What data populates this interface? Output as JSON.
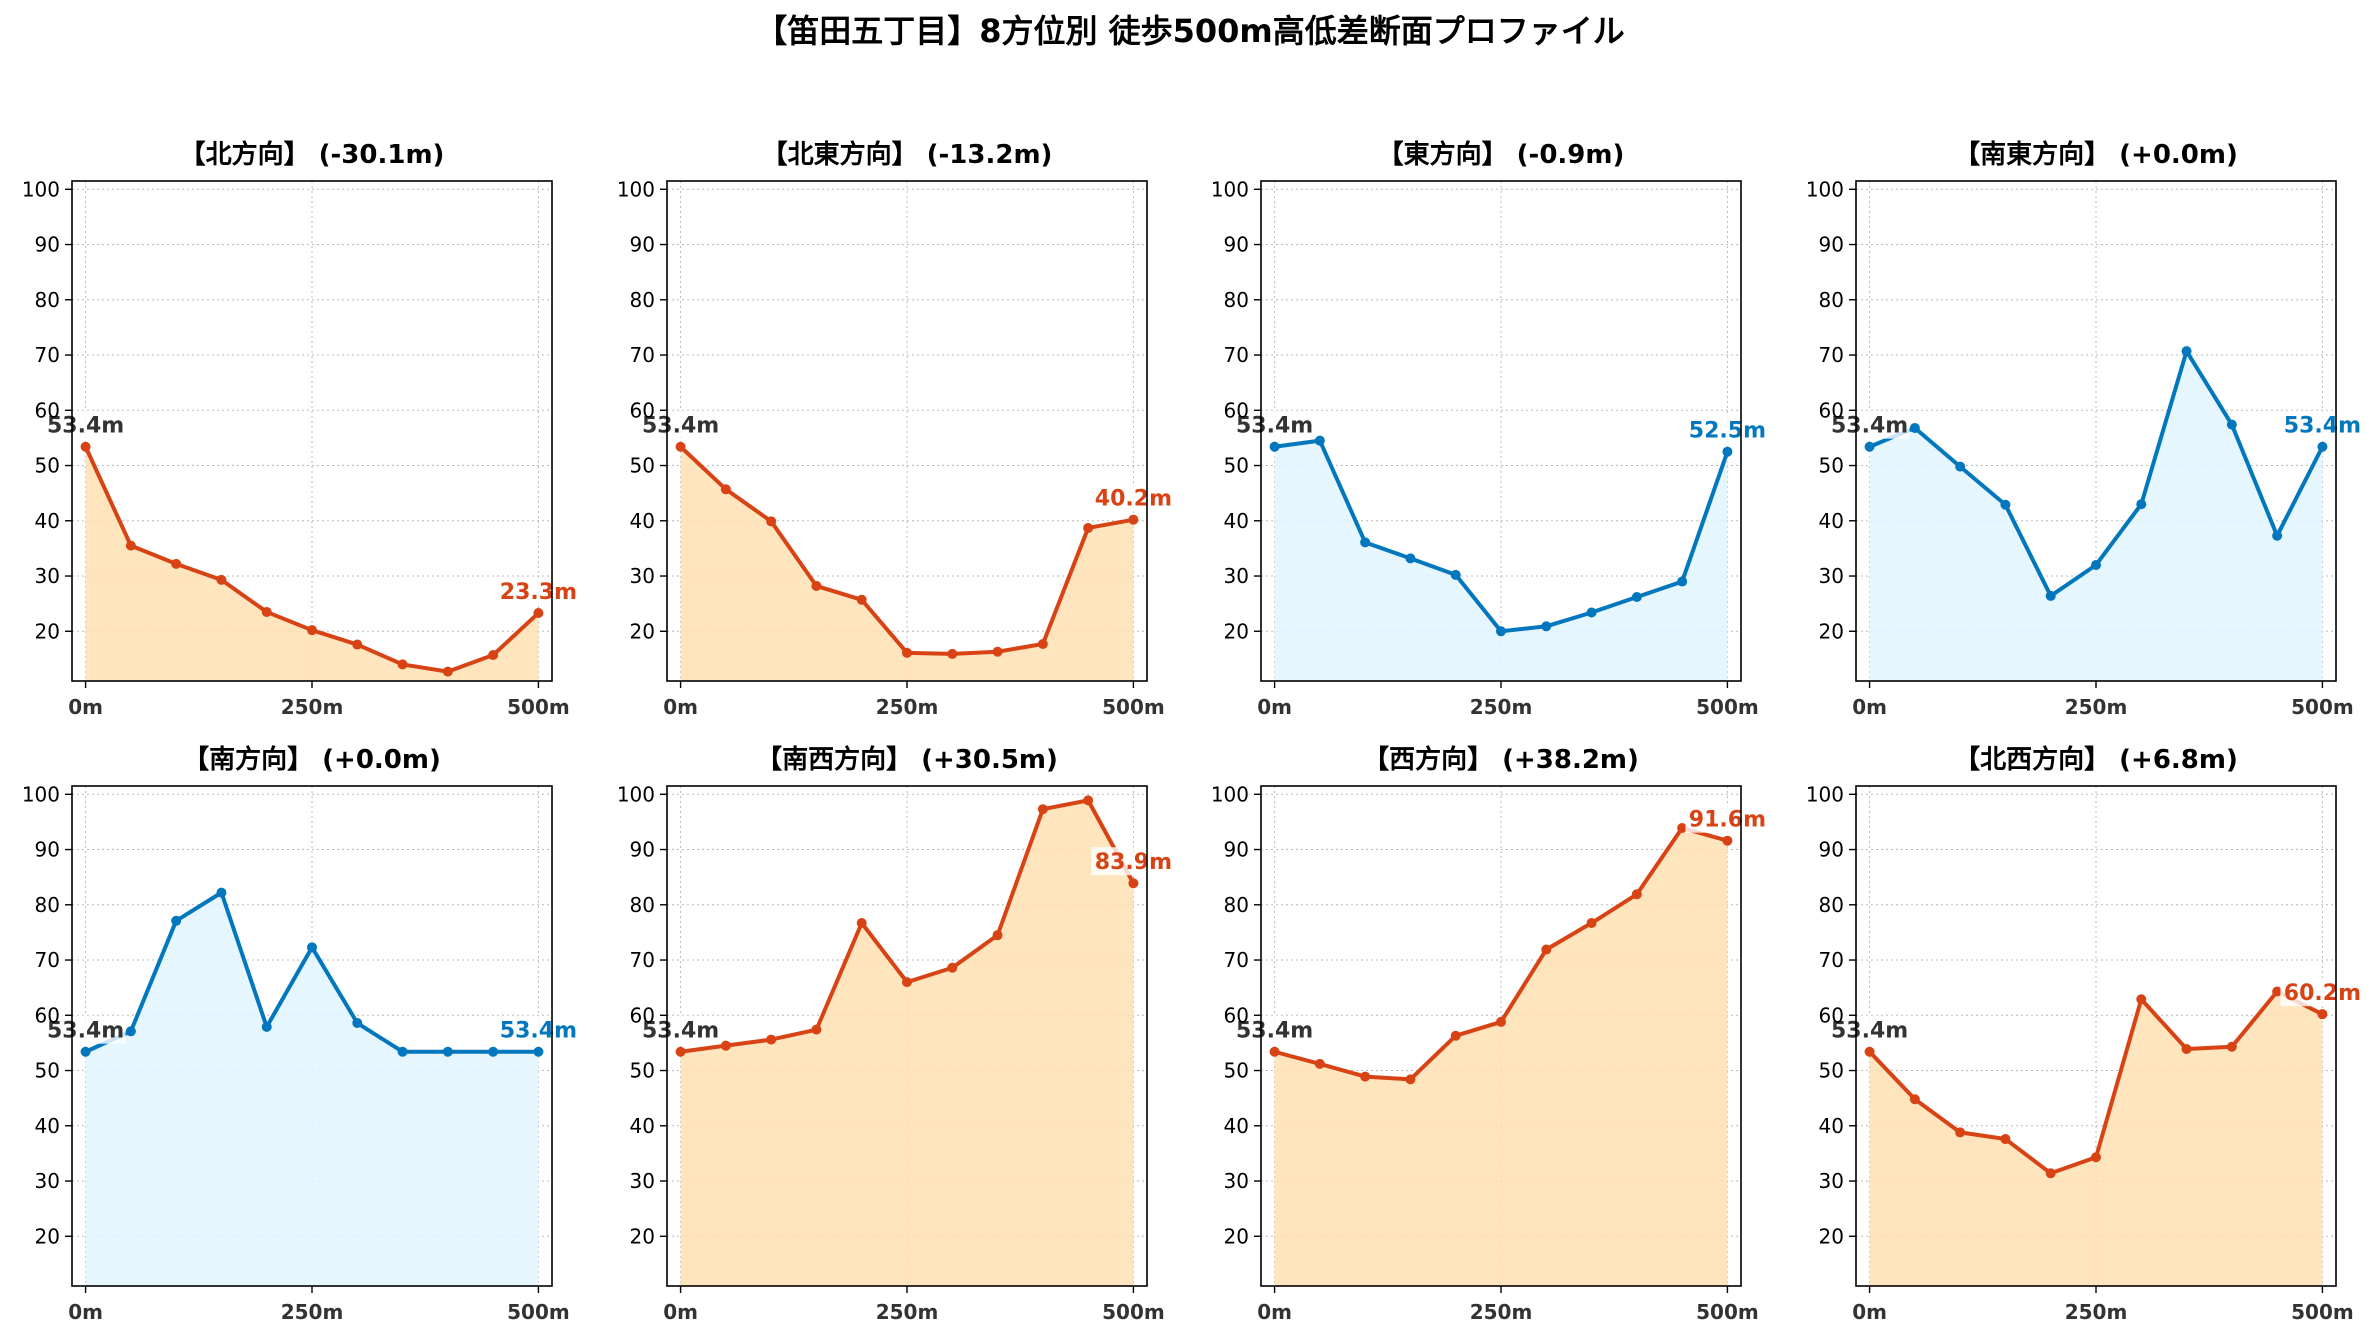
{
  "title": "【笛田五丁目】8方位別 徒歩500m高低差断面プロファイル",
  "colors": {
    "down": "#d84315",
    "down_fill": "#ffe0b2",
    "up": "#0277bd",
    "up_fill": "#e1f5fe",
    "start_label": "#333333",
    "grid": "#bbbbbb",
    "axis": "#000000"
  },
  "chart_data": [
    {
      "type": "area",
      "title": "【北方向】 (-30.1m)",
      "xlabel": "",
      "ylabel": "",
      "x": [
        0,
        50,
        100,
        150,
        200,
        250,
        300,
        350,
        400,
        450,
        500
      ],
      "series": [
        {
          "values": [
            53.4,
            35.5,
            32.2,
            29.3,
            23.5,
            20.2,
            17.6,
            14.0,
            12.7,
            15.7,
            23.3
          ]
        }
      ],
      "color_key": "down",
      "start_label": "53.4m",
      "end_label": "23.3m",
      "xticks": [
        "0m",
        "250m",
        "500m"
      ],
      "yticks": [
        "20",
        "30",
        "40",
        "50",
        "60",
        "70",
        "80",
        "90",
        "100"
      ],
      "xlim": [
        -15,
        515
      ],
      "ylim": [
        11,
        101.5
      ],
      "grid": true
    },
    {
      "type": "area",
      "title": "【北東方向】 (-13.2m)",
      "xlabel": "",
      "ylabel": "",
      "x": [
        0,
        50,
        100,
        150,
        200,
        250,
        300,
        350,
        400,
        450,
        500
      ],
      "series": [
        {
          "values": [
            53.4,
            45.7,
            39.9,
            28.2,
            25.7,
            16.1,
            15.9,
            16.3,
            17.7,
            38.7,
            40.2
          ]
        }
      ],
      "color_key": "down",
      "start_label": "53.4m",
      "end_label": "40.2m",
      "xticks": [
        "0m",
        "250m",
        "500m"
      ],
      "yticks": [
        "20",
        "30",
        "40",
        "50",
        "60",
        "70",
        "80",
        "90",
        "100"
      ],
      "xlim": [
        -15,
        515
      ],
      "ylim": [
        11,
        101.5
      ],
      "grid": true
    },
    {
      "type": "area",
      "title": "【東方向】 (-0.9m)",
      "xlabel": "",
      "ylabel": "",
      "x": [
        0,
        50,
        100,
        150,
        200,
        250,
        300,
        350,
        400,
        450,
        500
      ],
      "series": [
        {
          "values": [
            53.4,
            54.5,
            36.1,
            33.2,
            30.2,
            20.0,
            20.9,
            23.4,
            26.2,
            29.0,
            52.5
          ]
        }
      ],
      "color_key": "up",
      "start_label": "53.4m",
      "end_label": "52.5m",
      "xticks": [
        "0m",
        "250m",
        "500m"
      ],
      "yticks": [
        "20",
        "30",
        "40",
        "50",
        "60",
        "70",
        "80",
        "90",
        "100"
      ],
      "xlim": [
        -15,
        515
      ],
      "ylim": [
        11,
        101.5
      ],
      "grid": true
    },
    {
      "type": "area",
      "title": "【南東方向】 (+0.0m)",
      "xlabel": "",
      "ylabel": "",
      "x": [
        0,
        50,
        100,
        150,
        200,
        250,
        300,
        350,
        400,
        450,
        500
      ],
      "series": [
        {
          "values": [
            53.4,
            56.8,
            49.8,
            42.9,
            26.4,
            32.0,
            43.0,
            70.7,
            57.4,
            37.3,
            53.4
          ]
        }
      ],
      "color_key": "up",
      "start_label": "53.4m",
      "end_label": "53.4m",
      "xticks": [
        "0m",
        "250m",
        "500m"
      ],
      "yticks": [
        "20",
        "30",
        "40",
        "50",
        "60",
        "70",
        "80",
        "90",
        "100"
      ],
      "xlim": [
        -15,
        515
      ],
      "ylim": [
        11,
        101.5
      ],
      "grid": true
    },
    {
      "type": "area",
      "title": "【南方向】 (+0.0m)",
      "xlabel": "",
      "ylabel": "",
      "x": [
        0,
        50,
        100,
        150,
        200,
        250,
        300,
        350,
        400,
        450,
        500
      ],
      "series": [
        {
          "values": [
            53.4,
            57.1,
            77.1,
            82.2,
            57.9,
            72.3,
            58.6,
            53.4,
            53.4,
            53.4,
            53.4
          ]
        }
      ],
      "color_key": "up",
      "start_label": "53.4m",
      "end_label": "53.4m",
      "xticks": [
        "0m",
        "250m",
        "500m"
      ],
      "yticks": [
        "20",
        "30",
        "40",
        "50",
        "60",
        "70",
        "80",
        "90",
        "100"
      ],
      "xlim": [
        -15,
        515
      ],
      "ylim": [
        11,
        101.5
      ],
      "grid": true
    },
    {
      "type": "area",
      "title": "【南西方向】 (+30.5m)",
      "xlabel": "",
      "ylabel": "",
      "x": [
        0,
        50,
        100,
        150,
        200,
        250,
        300,
        350,
        400,
        450,
        500
      ],
      "series": [
        {
          "values": [
            53.4,
            54.5,
            55.6,
            57.4,
            76.7,
            66.0,
            68.6,
            74.5,
            97.3,
            98.9,
            83.9
          ]
        }
      ],
      "color_key": "down",
      "start_label": "53.4m",
      "end_label": "83.9m",
      "xticks": [
        "0m",
        "250m",
        "500m"
      ],
      "yticks": [
        "20",
        "30",
        "40",
        "50",
        "60",
        "70",
        "80",
        "90",
        "100"
      ],
      "xlim": [
        -15,
        515
      ],
      "ylim": [
        11,
        101.5
      ],
      "grid": true
    },
    {
      "type": "area",
      "title": "【西方向】 (+38.2m)",
      "xlabel": "",
      "ylabel": "",
      "x": [
        0,
        50,
        100,
        150,
        200,
        250,
        300,
        350,
        400,
        450,
        500
      ],
      "series": [
        {
          "values": [
            53.4,
            51.2,
            48.9,
            48.4,
            56.3,
            58.8,
            71.9,
            76.7,
            81.9,
            93.9,
            91.6
          ]
        }
      ],
      "color_key": "down",
      "start_label": "53.4m",
      "end_label": "91.6m",
      "xticks": [
        "0m",
        "250m",
        "500m"
      ],
      "yticks": [
        "20",
        "30",
        "40",
        "50",
        "60",
        "70",
        "80",
        "90",
        "100"
      ],
      "xlim": [
        -15,
        515
      ],
      "ylim": [
        11,
        101.5
      ],
      "grid": true
    },
    {
      "type": "area",
      "title": "【北西方向】 (+6.8m)",
      "xlabel": "",
      "ylabel": "",
      "x": [
        0,
        50,
        100,
        150,
        200,
        250,
        300,
        350,
        400,
        450,
        500
      ],
      "series": [
        {
          "values": [
            53.4,
            44.8,
            38.8,
            37.6,
            31.4,
            34.3,
            62.9,
            53.9,
            54.3,
            64.3,
            60.2
          ]
        }
      ],
      "color_key": "down",
      "start_label": "53.4m",
      "end_label": "60.2m",
      "xticks": [
        "0m",
        "250m",
        "500m"
      ],
      "yticks": [
        "20",
        "30",
        "40",
        "50",
        "60",
        "70",
        "80",
        "90",
        "100"
      ],
      "xlim": [
        -15,
        515
      ],
      "ylim": [
        11,
        101.5
      ],
      "grid": true
    }
  ]
}
